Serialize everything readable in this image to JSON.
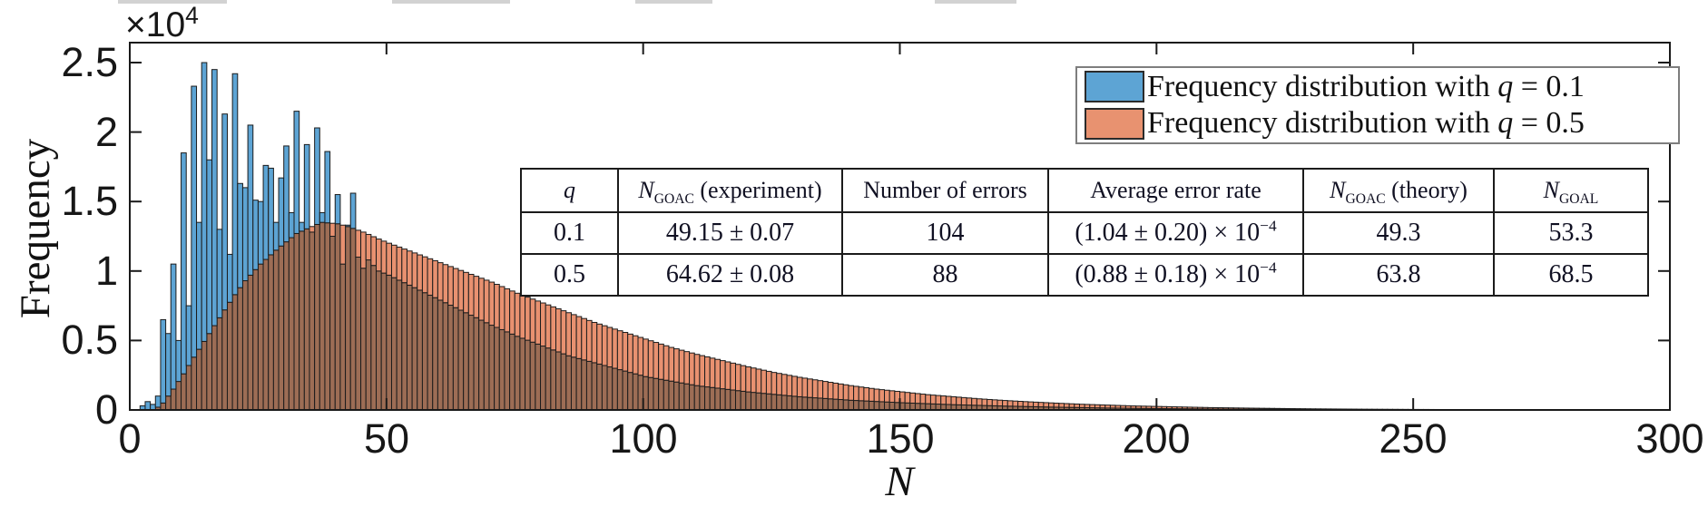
{
  "chart_data": {
    "type": "bar",
    "subtype": "overlapping-histograms",
    "title": "",
    "xlabel": "N",
    "ylabel": "Frequency",
    "xlim": [
      0,
      300
    ],
    "ylim": [
      0,
      26400
    ],
    "bin_width": 1,
    "grid": false,
    "legend_position": "top-right",
    "x_ticks": [
      "0",
      "50",
      "100",
      "150",
      "200",
      "250",
      "300"
    ],
    "y_ticks": [
      "0",
      "0.5",
      "1",
      "1.5",
      "2",
      "2.5"
    ],
    "multiplier": {
      "base": "×10",
      "exp": "4"
    },
    "edge_color": "#1c1c1c",
    "overlap_color": "#9d6d55",
    "series": [
      {
        "name": "Frequency distribution with q = 0.1",
        "q": "0.1",
        "color": "#5da4d4",
        "knots_N_vs_height_1e4": [
          [
            2,
            0.03
          ],
          [
            3,
            0.06
          ],
          [
            4,
            0.04
          ],
          [
            5,
            0.1
          ],
          [
            6,
            0.65
          ],
          [
            7,
            0.55
          ],
          [
            8,
            1.05
          ],
          [
            9,
            0.5
          ],
          [
            10,
            1.85
          ],
          [
            11,
            0.75
          ],
          [
            12,
            2.33
          ],
          [
            13,
            1.35
          ],
          [
            14,
            2.5
          ],
          [
            15,
            1.8
          ],
          [
            16,
            2.45
          ],
          [
            17,
            1.3
          ],
          [
            18,
            2.13
          ],
          [
            19,
            1.12
          ],
          [
            20,
            2.42
          ],
          [
            21,
            1.63
          ],
          [
            22,
            1.6
          ],
          [
            23,
            2.05
          ],
          [
            24,
            1.51
          ],
          [
            25,
            1.5
          ],
          [
            26,
            1.76
          ],
          [
            27,
            1.74
          ],
          [
            28,
            1.35
          ],
          [
            29,
            1.67
          ],
          [
            30,
            1.9
          ],
          [
            31,
            1.42
          ],
          [
            32,
            2.15
          ],
          [
            33,
            1.35
          ],
          [
            34,
            1.91
          ],
          [
            35,
            1.28
          ],
          [
            36,
            2.03
          ],
          [
            37,
            1.42
          ],
          [
            38,
            1.86
          ],
          [
            39,
            1.25
          ],
          [
            40,
            1.55
          ],
          [
            41,
            1.05
          ],
          [
            42,
            1.33
          ],
          [
            43,
            1.56
          ],
          [
            44,
            1.1
          ],
          [
            45,
            1.02
          ],
          [
            46,
            1.08
          ],
          [
            48,
            1.0
          ],
          [
            50,
            0.97
          ],
          [
            55,
            0.88
          ],
          [
            60,
            0.79
          ],
          [
            65,
            0.7
          ],
          [
            70,
            0.61
          ],
          [
            75,
            0.53
          ],
          [
            80,
            0.46
          ],
          [
            85,
            0.39
          ],
          [
            90,
            0.34
          ],
          [
            95,
            0.29
          ],
          [
            100,
            0.24
          ],
          [
            110,
            0.175
          ],
          [
            120,
            0.13
          ],
          [
            130,
            0.095
          ],
          [
            140,
            0.07
          ],
          [
            150,
            0.052
          ],
          [
            160,
            0.038
          ],
          [
            170,
            0.028
          ],
          [
            180,
            0.02
          ],
          [
            190,
            0.014
          ],
          [
            200,
            0.01
          ],
          [
            210,
            0.007
          ],
          [
            220,
            0.005
          ],
          [
            240,
            0.0025
          ],
          [
            260,
            0.0012
          ],
          [
            280,
            0.0006
          ],
          [
            300,
            0.0003
          ]
        ]
      },
      {
        "name": "Frequency distribution with q = 0.5",
        "q": "0.5",
        "color": "#e89170",
        "knots_N_vs_height_1e4": [
          [
            5,
            0.02
          ],
          [
            6,
            0.05
          ],
          [
            8,
            0.15
          ],
          [
            10,
            0.26
          ],
          [
            12,
            0.38
          ],
          [
            15,
            0.55
          ],
          [
            18,
            0.72
          ],
          [
            20,
            0.83
          ],
          [
            22,
            0.93
          ],
          [
            25,
            1.05
          ],
          [
            28,
            1.15
          ],
          [
            30,
            1.21
          ],
          [
            32,
            1.27
          ],
          [
            35,
            1.32
          ],
          [
            37,
            1.35
          ],
          [
            40,
            1.34
          ],
          [
            42,
            1.32
          ],
          [
            45,
            1.28
          ],
          [
            48,
            1.23
          ],
          [
            50,
            1.2
          ],
          [
            55,
            1.13
          ],
          [
            60,
            1.06
          ],
          [
            65,
            0.99
          ],
          [
            70,
            0.92
          ],
          [
            75,
            0.84
          ],
          [
            80,
            0.77
          ],
          [
            85,
            0.7
          ],
          [
            90,
            0.63
          ],
          [
            95,
            0.57
          ],
          [
            100,
            0.51
          ],
          [
            105,
            0.45
          ],
          [
            110,
            0.4
          ],
          [
            115,
            0.355
          ],
          [
            120,
            0.31
          ],
          [
            125,
            0.27
          ],
          [
            130,
            0.235
          ],
          [
            135,
            0.205
          ],
          [
            140,
            0.175
          ],
          [
            145,
            0.15
          ],
          [
            150,
            0.13
          ],
          [
            155,
            0.11
          ],
          [
            160,
            0.095
          ],
          [
            165,
            0.08
          ],
          [
            170,
            0.068
          ],
          [
            175,
            0.058
          ],
          [
            180,
            0.049
          ],
          [
            185,
            0.041
          ],
          [
            190,
            0.035
          ],
          [
            195,
            0.029
          ],
          [
            200,
            0.025
          ],
          [
            210,
            0.017
          ],
          [
            220,
            0.012
          ],
          [
            230,
            0.008
          ],
          [
            240,
            0.0055
          ],
          [
            250,
            0.0038
          ],
          [
            260,
            0.0026
          ],
          [
            270,
            0.0018
          ],
          [
            280,
            0.0012
          ],
          [
            290,
            0.0008
          ],
          [
            300,
            0.0005
          ]
        ]
      }
    ]
  },
  "legend": {
    "items": [
      {
        "color": "#5da4d4",
        "pre": "Frequency distribution with ",
        "i": "q",
        "post": " = 0.1"
      },
      {
        "color": "#e89270",
        "pre": "Frequency distribution with ",
        "i": "q",
        "post": " = 0.5"
      }
    ]
  },
  "table": {
    "headers": {
      "q": {
        "i": "q",
        "sub": "",
        "rest": ""
      },
      "n_exp": {
        "i": "N",
        "sub": "GOAC",
        "rest": " (experiment)"
      },
      "errors": {
        "i": "",
        "sub": "",
        "rest": "Number of errors"
      },
      "rate": {
        "i": "",
        "sub": "",
        "rest": "Average error rate"
      },
      "n_theory": {
        "i": "N",
        "sub": "GOAC",
        "rest": " (theory)"
      },
      "n_goal": {
        "i": "N",
        "sub": "GOAL",
        "rest": ""
      }
    },
    "rows": [
      {
        "q": "0.1",
        "n_exp": "49.15 ± 0.07",
        "errors": "104",
        "rate_base": "(1.04 ± 0.20) × 10",
        "rate_exp": "−4",
        "n_theory": "49.3",
        "n_goal": "53.3"
      },
      {
        "q": "0.5",
        "n_exp": "64.62 ± 0.08",
        "errors": "88",
        "rate_base": "(0.88 ± 0.18) × 10",
        "rate_exp": "−4",
        "n_theory": "63.8",
        "n_goal": "68.5"
      }
    ]
  }
}
